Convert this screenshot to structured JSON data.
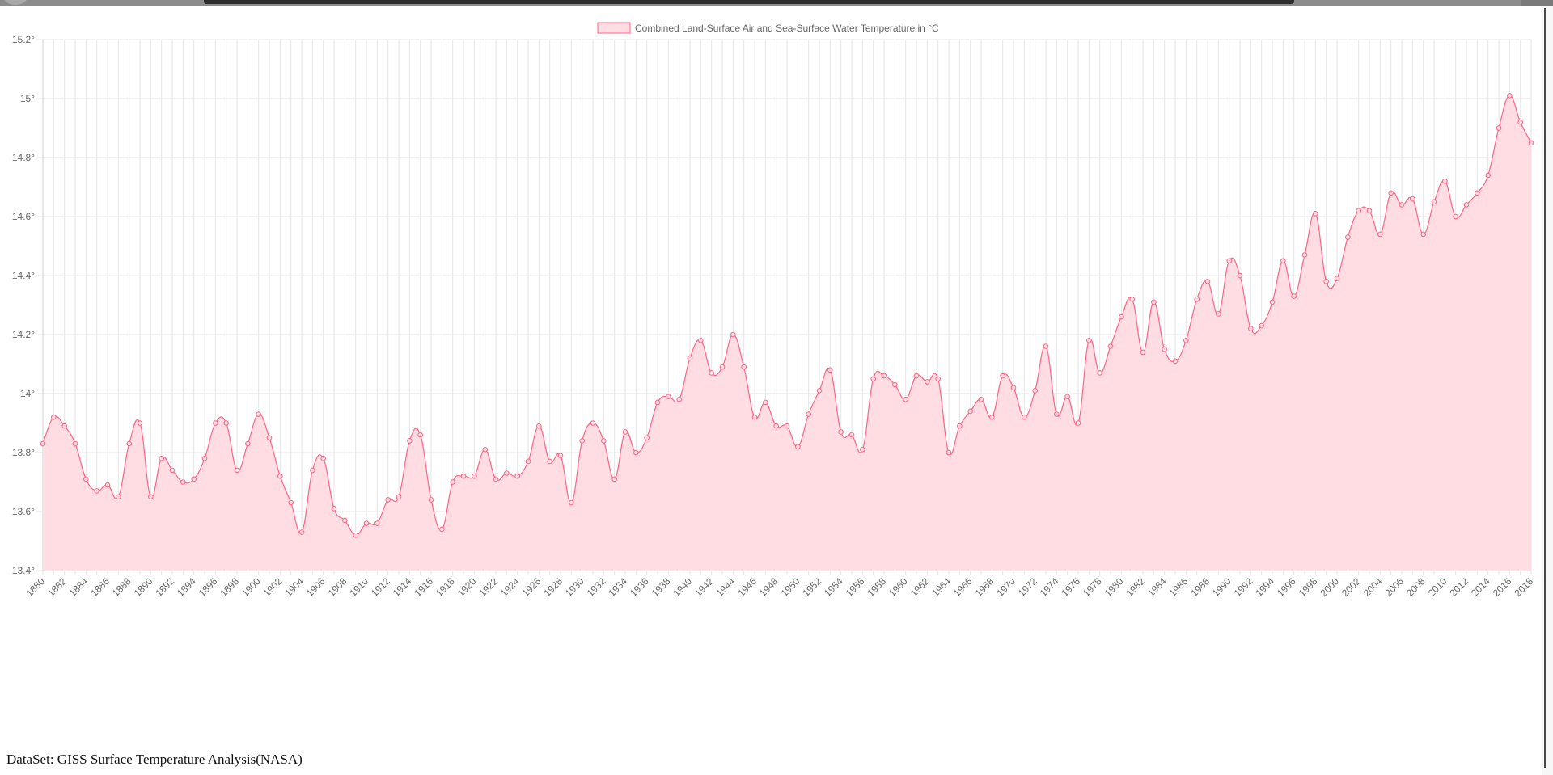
{
  "chart_data": {
    "type": "line",
    "legend": {
      "label": "Combined Land-Surface Air and Sea-Surface Water Temperature in °C",
      "placement": "top-center"
    },
    "ylim": [
      13.4,
      15.2
    ],
    "y_ticks": [
      13.4,
      13.6,
      13.8,
      14.0,
      14.2,
      14.4,
      14.6,
      14.8,
      15.0,
      15.2
    ],
    "y_tick_labels": [
      "13.4°",
      "13.6°",
      "13.8°",
      "14°",
      "14.2°",
      "14.4°",
      "14.6°",
      "14.8°",
      "15°",
      "15.2°"
    ],
    "x_tick_step": 2,
    "grid": true,
    "fill": true,
    "line_color": "#ff6384",
    "fill_color": "#ffdde3",
    "x": [
      1880,
      1881,
      1882,
      1883,
      1884,
      1885,
      1886,
      1887,
      1888,
      1889,
      1890,
      1891,
      1892,
      1893,
      1894,
      1895,
      1896,
      1897,
      1898,
      1899,
      1900,
      1901,
      1902,
      1903,
      1904,
      1905,
      1906,
      1907,
      1908,
      1909,
      1910,
      1911,
      1912,
      1913,
      1914,
      1915,
      1916,
      1917,
      1918,
      1919,
      1920,
      1921,
      1922,
      1923,
      1924,
      1925,
      1926,
      1927,
      1928,
      1929,
      1930,
      1931,
      1932,
      1933,
      1934,
      1935,
      1936,
      1937,
      1938,
      1939,
      1940,
      1941,
      1942,
      1943,
      1944,
      1945,
      1946,
      1947,
      1948,
      1949,
      1950,
      1951,
      1952,
      1953,
      1954,
      1955,
      1956,
      1957,
      1958,
      1959,
      1960,
      1961,
      1962,
      1963,
      1964,
      1965,
      1966,
      1967,
      1968,
      1969,
      1970,
      1971,
      1972,
      1973,
      1974,
      1975,
      1976,
      1977,
      1978,
      1979,
      1980,
      1981,
      1982,
      1983,
      1984,
      1985,
      1986,
      1987,
      1988,
      1989,
      1990,
      1991,
      1992,
      1993,
      1994,
      1995,
      1996,
      1997,
      1998,
      1999,
      2000,
      2001,
      2002,
      2003,
      2004,
      2005,
      2006,
      2007,
      2008,
      2009,
      2010,
      2011,
      2012,
      2013,
      2014,
      2015,
      2016,
      2017,
      2018
    ],
    "values": [
      13.83,
      13.92,
      13.89,
      13.83,
      13.71,
      13.67,
      13.69,
      13.65,
      13.83,
      13.9,
      13.65,
      13.78,
      13.74,
      13.7,
      13.71,
      13.78,
      13.9,
      13.9,
      13.74,
      13.83,
      13.93,
      13.85,
      13.72,
      13.63,
      13.53,
      13.74,
      13.78,
      13.61,
      13.57,
      13.52,
      13.56,
      13.56,
      13.64,
      13.65,
      13.84,
      13.86,
      13.64,
      13.54,
      13.7,
      13.72,
      13.72,
      13.81,
      13.71,
      13.73,
      13.72,
      13.77,
      13.89,
      13.77,
      13.79,
      13.63,
      13.84,
      13.9,
      13.84,
      13.71,
      13.87,
      13.8,
      13.85,
      13.97,
      13.99,
      13.98,
      14.12,
      14.18,
      14.07,
      14.09,
      14.2,
      14.09,
      13.92,
      13.97,
      13.89,
      13.89,
      13.82,
      13.93,
      14.01,
      14.08,
      13.87,
      13.86,
      13.81,
      14.05,
      14.06,
      14.03,
      13.98,
      14.06,
      14.04,
      14.05,
      13.8,
      13.89,
      13.94,
      13.98,
      13.92,
      14.06,
      14.02,
      13.92,
      14.01,
      14.16,
      13.93,
      13.99,
      13.9,
      14.18,
      14.07,
      14.16,
      14.26,
      14.32,
      14.14,
      14.31,
      14.15,
      14.11,
      14.18,
      14.32,
      14.38,
      14.27,
      14.45,
      14.4,
      14.22,
      14.23,
      14.31,
      14.45,
      14.33,
      14.47,
      14.61,
      14.38,
      14.39,
      14.53,
      14.62,
      14.62,
      14.54,
      14.68,
      14.64,
      14.66,
      14.54,
      14.65,
      14.72,
      14.6,
      14.64,
      14.68,
      14.74,
      14.9,
      15.01,
      14.92,
      14.85
    ]
  },
  "footer": {
    "dataset_label": "DataSet: GISS Surface Temperature Analysis(NASA)"
  }
}
